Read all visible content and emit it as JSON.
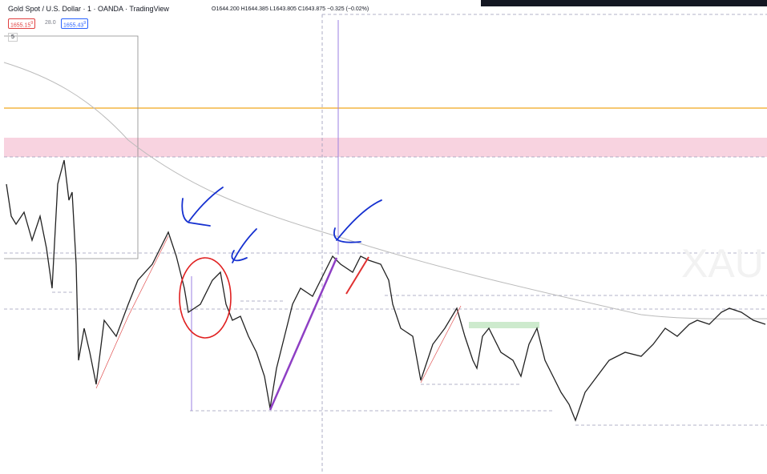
{
  "header": {
    "symbol": "Gold Spot / U.S. Dollar · 1 · OANDA · TradingView",
    "ohlc": "O1644.200 H1644.385 L1643.805 C1643.875 −0.325 (−0.02%)"
  },
  "quote": {
    "sell": "1655.15",
    "sell_pip": "9",
    "spread": "28.0",
    "buy": "1655.43",
    "buy_pip": "9"
  },
  "indicator_toggle": "5",
  "watermark": "XAU"
}
